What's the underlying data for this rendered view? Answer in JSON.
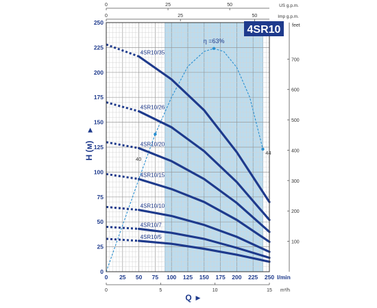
{
  "chart_data": {
    "type": "line",
    "title": "4SR10",
    "ylabel": "H (м)",
    "xlabel": "Q",
    "x_unit_main": "l/min",
    "x_unit_bottom": "m³/h",
    "y_unit_right": "feet",
    "top_units": {
      "us": "US g.p.m.",
      "imp": "Imp g.p.m."
    },
    "xlim": [
      0,
      250
    ],
    "ylim": [
      0,
      250
    ],
    "x_ticks": [
      0,
      25,
      50,
      75,
      100,
      125,
      150,
      175,
      200,
      225,
      250
    ],
    "y_ticks": [
      0,
      25,
      50,
      75,
      100,
      125,
      150,
      175,
      200,
      225,
      250
    ],
    "m3h_ticks": [
      0,
      5,
      10,
      15
    ],
    "feet_ticks": [
      100,
      200,
      300,
      400,
      500,
      600,
      700
    ],
    "us_gpm_ticks": [
      0,
      25,
      50
    ],
    "imp_gpm_ticks": [
      0,
      25,
      50
    ],
    "operating_range": [
      90,
      240
    ],
    "series": [
      {
        "name": "4SR10/35",
        "h0": 228,
        "x": [
          50,
          100,
          150,
          200,
          250
        ],
        "y": [
          216,
          193,
          162,
          120,
          70
        ]
      },
      {
        "name": "4SR10/26",
        "h0": 170,
        "x": [
          50,
          100,
          150,
          200,
          250
        ],
        "y": [
          161,
          145,
          121,
          90,
          52
        ]
      },
      {
        "name": "4SR10/20",
        "h0": 130,
        "x": [
          50,
          100,
          150,
          200,
          250
        ],
        "y": [
          124,
          111,
          93,
          69,
          40
        ]
      },
      {
        "name": "4SR10/15",
        "h0": 98,
        "x": [
          50,
          100,
          150,
          200,
          250
        ],
        "y": [
          93,
          83,
          70,
          52,
          30
        ]
      },
      {
        "name": "4SR10/10",
        "h0": 65,
        "x": [
          50,
          100,
          150,
          200,
          250
        ],
        "y": [
          62,
          56,
          47,
          35,
          20
        ]
      },
      {
        "name": "4SR10/7",
        "h0": 45,
        "x": [
          50,
          100,
          150,
          200,
          250
        ],
        "y": [
          43,
          39,
          33,
          24,
          14
        ]
      },
      {
        "name": "4SR10/5",
        "h0": 33,
        "x": [
          50,
          100,
          150,
          200,
          250
        ],
        "y": [
          31,
          28,
          23,
          17,
          10
        ]
      }
    ],
    "efficiency": {
      "x": [
        0,
        50,
        75,
        100,
        125,
        150,
        165,
        180,
        200,
        220,
        240
      ],
      "y": [
        0,
        93,
        138,
        175,
        206,
        221,
        224,
        221,
        205,
        175,
        123
      ],
      "annotations": [
        {
          "text": "η =63%",
          "x": 165,
          "y": 224
        },
        {
          "text": "40",
          "x": 60,
          "y": 114
        },
        {
          "text": "44",
          "x": 240,
          "y": 123
        }
      ]
    }
  }
}
